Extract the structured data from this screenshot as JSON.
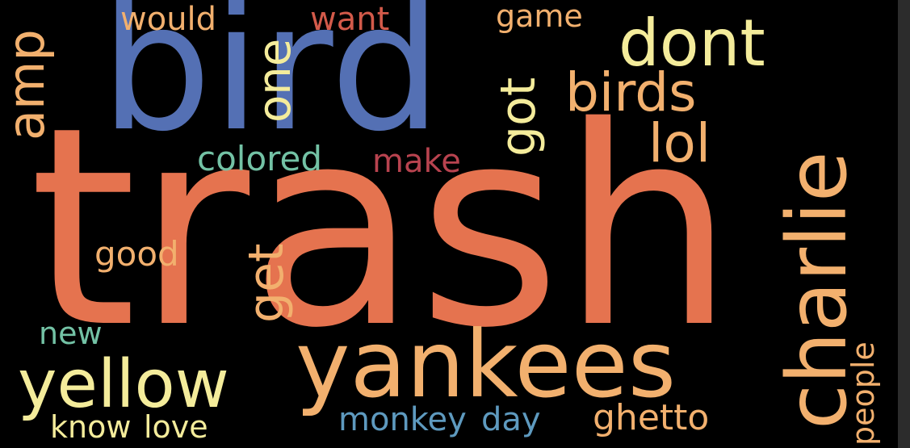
{
  "palette": {
    "background": "#000000",
    "orange": "#E5734F",
    "blue": "#5470B4",
    "light_orange": "#F2B06E",
    "pale_yellow": "#F4EC9B",
    "teal": "#73C2A5",
    "red": "#D35A4A",
    "rose": "#B8434F",
    "steel_blue": "#5E9ABF"
  },
  "words": {
    "trash": "trash",
    "bird": "bird",
    "charlie": "charlie",
    "yankees": "yankees",
    "yellow": "yellow",
    "dont": "dont",
    "birds": "birds",
    "amp": "amp",
    "one": "one",
    "got": "got",
    "lol": "lol",
    "would": "would",
    "want": "want",
    "game": "game",
    "colored": "colored",
    "make": "make",
    "good": "good",
    "get": "get",
    "new": "new",
    "know": "know",
    "love": "love",
    "monkey": "monkey",
    "day": "day",
    "ghetto": "ghetto",
    "people": "people"
  }
}
